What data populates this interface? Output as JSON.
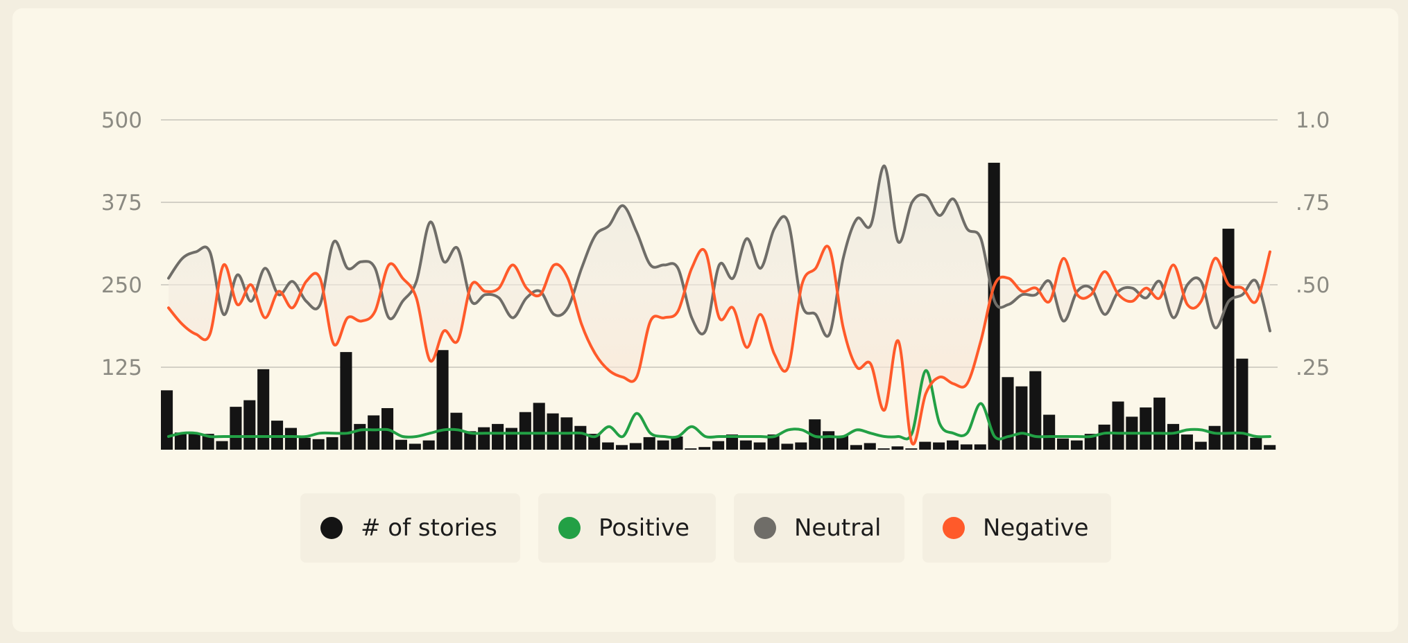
{
  "chart_data": {
    "type": "bar",
    "title": "",
    "xlabel": "",
    "ylabel": "",
    "ylim": [
      0,
      500
    ],
    "y2lim": [
      0,
      1.0
    ],
    "y_ticks": [
      {
        "value": 125,
        "label": "125"
      },
      {
        "value": 250,
        "label": "250"
      },
      {
        "value": 375,
        "label": "375"
      },
      {
        "value": 500,
        "label": "500"
      }
    ],
    "y2_ticks": [
      {
        "value": 0.25,
        "label": ".25"
      },
      {
        "value": 0.5,
        "label": ".50"
      },
      {
        "value": 0.75,
        "label": ".75"
      },
      {
        "value": 1.0,
        "label": "1.0"
      }
    ],
    "grid": true,
    "legend_position": "bottom",
    "colors": {
      "stories": "#141414",
      "positive": "#22a045",
      "neutral": "#6f6d68",
      "negative": "#ff5a2a"
    },
    "series": [
      {
        "name": "# of stories",
        "axis": "left",
        "values": [
          90,
          26,
          25,
          24,
          13,
          65,
          75,
          122,
          44,
          33,
          18,
          16,
          19,
          148,
          39,
          52,
          63,
          15,
          9,
          14,
          151,
          56,
          28,
          34,
          39,
          33,
          57,
          71,
          55,
          49,
          36,
          24,
          11,
          7,
          10,
          19,
          14,
          20,
          2,
          4,
          13,
          23,
          14,
          11,
          23,
          9,
          11,
          46,
          28,
          21,
          7,
          10,
          2,
          5,
          2,
          12,
          11,
          14,
          8,
          8,
          435,
          110,
          96,
          119,
          53,
          17,
          14,
          24,
          38,
          73,
          50,
          64,
          79,
          39,
          23,
          12,
          36,
          335,
          138,
          18,
          7
        ]
      },
      {
        "name": "Positive",
        "axis": "right",
        "values": [
          0.04,
          0.05,
          0.05,
          0.04,
          0.04,
          0.04,
          0.04,
          0.04,
          0.04,
          0.04,
          0.04,
          0.05,
          0.05,
          0.05,
          0.06,
          0.06,
          0.06,
          0.04,
          0.04,
          0.05,
          0.06,
          0.06,
          0.05,
          0.05,
          0.05,
          0.05,
          0.05,
          0.05,
          0.05,
          0.05,
          0.05,
          0.04,
          0.07,
          0.04,
          0.11,
          0.05,
          0.04,
          0.04,
          0.07,
          0.04,
          0.04,
          0.04,
          0.04,
          0.04,
          0.04,
          0.06,
          0.06,
          0.04,
          0.04,
          0.04,
          0.06,
          0.05,
          0.04,
          0.04,
          0.05,
          0.24,
          0.08,
          0.05,
          0.05,
          0.14,
          0.04,
          0.04,
          0.05,
          0.04,
          0.04,
          0.04,
          0.04,
          0.04,
          0.05,
          0.05,
          0.05,
          0.05,
          0.05,
          0.05,
          0.06,
          0.06,
          0.05,
          0.05,
          0.05,
          0.04,
          0.04
        ]
      },
      {
        "name": "Neutral",
        "axis": "right",
        "values": [
          0.52,
          0.58,
          0.6,
          0.6,
          0.41,
          0.53,
          0.45,
          0.55,
          0.47,
          0.51,
          0.45,
          0.44,
          0.63,
          0.55,
          0.57,
          0.55,
          0.4,
          0.45,
          0.51,
          0.69,
          0.57,
          0.61,
          0.45,
          0.47,
          0.46,
          0.4,
          0.46,
          0.48,
          0.41,
          0.43,
          0.55,
          0.65,
          0.68,
          0.74,
          0.66,
          0.56,
          0.56,
          0.55,
          0.4,
          0.36,
          0.56,
          0.52,
          0.64,
          0.55,
          0.67,
          0.69,
          0.44,
          0.41,
          0.35,
          0.58,
          0.7,
          0.68,
          0.86,
          0.63,
          0.75,
          0.77,
          0.71,
          0.76,
          0.67,
          0.64,
          0.45,
          0.44,
          0.47,
          0.47,
          0.51,
          0.39,
          0.48,
          0.49,
          0.41,
          0.48,
          0.49,
          0.46,
          0.51,
          0.4,
          0.5,
          0.51,
          0.37,
          0.45,
          0.47,
          0.51,
          0.36
        ]
      },
      {
        "name": "Negative",
        "axis": "right",
        "values": [
          0.43,
          0.38,
          0.35,
          0.35,
          0.56,
          0.44,
          0.5,
          0.4,
          0.48,
          0.43,
          0.51,
          0.52,
          0.32,
          0.4,
          0.39,
          0.42,
          0.56,
          0.52,
          0.46,
          0.27,
          0.36,
          0.33,
          0.5,
          0.48,
          0.49,
          0.56,
          0.49,
          0.47,
          0.56,
          0.52,
          0.38,
          0.29,
          0.24,
          0.22,
          0.22,
          0.39,
          0.4,
          0.42,
          0.55,
          0.6,
          0.4,
          0.43,
          0.31,
          0.41,
          0.29,
          0.25,
          0.5,
          0.55,
          0.61,
          0.37,
          0.25,
          0.26,
          0.12,
          0.33,
          0.02,
          0.17,
          0.22,
          0.2,
          0.2,
          0.33,
          0.5,
          0.52,
          0.48,
          0.49,
          0.45,
          0.58,
          0.47,
          0.47,
          0.54,
          0.47,
          0.45,
          0.49,
          0.46,
          0.56,
          0.44,
          0.45,
          0.58,
          0.5,
          0.49,
          0.45,
          0.6
        ]
      }
    ]
  }
}
